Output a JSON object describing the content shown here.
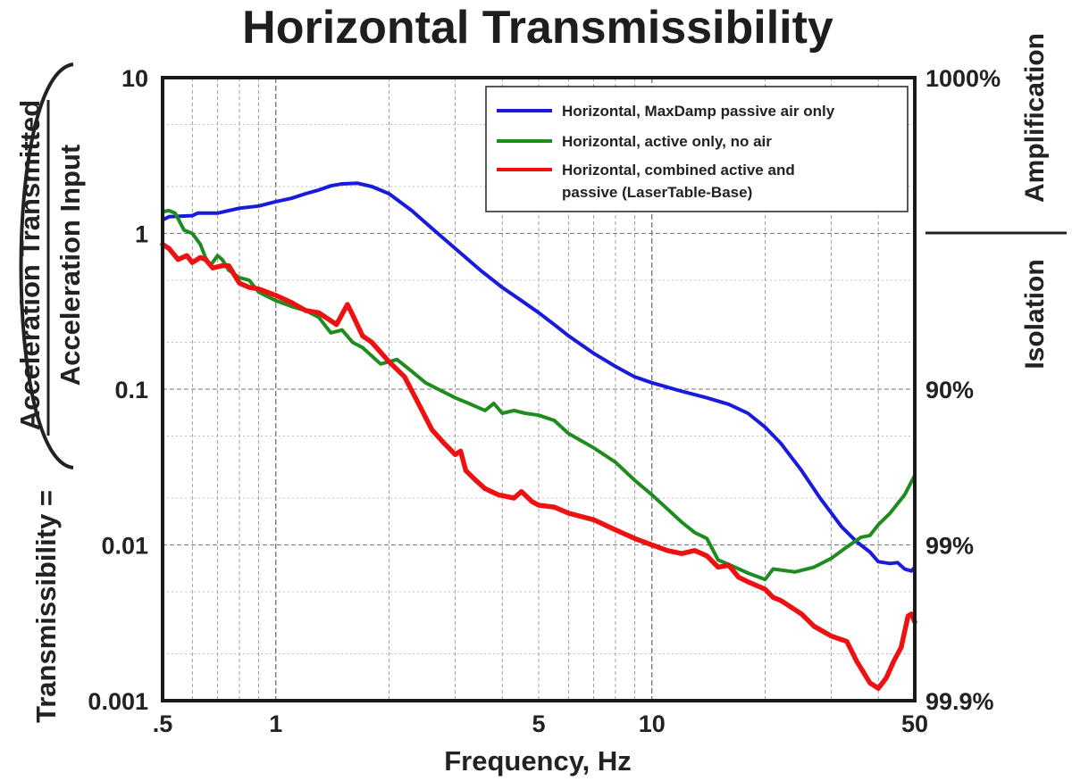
{
  "chart_data": {
    "type": "line",
    "title": "Horizontal Transmissibility",
    "xlabel": "Frequency, Hz",
    "ylabel_prefix": "Transmissibility =",
    "ylabel_numerator": "Acceleration Transmitted",
    "ylabel_denominator": "Acceleration Input",
    "x_scale": "log",
    "y_scale": "log",
    "xlim": [
      0.5,
      50
    ],
    "ylim": [
      0.001,
      10
    ],
    "x_ticks": [
      {
        "value": 0.5,
        "label": ".5"
      },
      {
        "value": 1,
        "label": "1"
      },
      {
        "value": 5,
        "label": "5"
      },
      {
        "value": 10,
        "label": "10"
      },
      {
        "value": 50,
        "label": "50"
      }
    ],
    "y_ticks": [
      {
        "value": 10,
        "label": "10"
      },
      {
        "value": 1,
        "label": "1"
      },
      {
        "value": 0.1,
        "label": "0.1"
      },
      {
        "value": 0.01,
        "label": "0.01"
      },
      {
        "value": 0.001,
        "label": "0.001"
      }
    ],
    "right_ticks": [
      {
        "value": 10,
        "label": "1000%"
      },
      {
        "value": 0.1,
        "label": "90%"
      },
      {
        "value": 0.01,
        "label": "99%"
      },
      {
        "value": 0.001,
        "label": "99.9%"
      }
    ],
    "right_labels": {
      "upper": "Amplification",
      "lower": "Isolation",
      "divider_at": 1
    },
    "grid": true,
    "legend_position": "top-right",
    "series": [
      {
        "name": "Horizontal, MaxDamp passive air only",
        "color": "#1a1adc",
        "points": [
          [
            0.5,
            1.22
          ],
          [
            0.52,
            1.28
          ],
          [
            0.6,
            1.3
          ],
          [
            0.62,
            1.35
          ],
          [
            0.7,
            1.35
          ],
          [
            0.8,
            1.45
          ],
          [
            0.9,
            1.5
          ],
          [
            1.0,
            1.6
          ],
          [
            1.1,
            1.68
          ],
          [
            1.2,
            1.8
          ],
          [
            1.3,
            1.9
          ],
          [
            1.4,
            2.02
          ],
          [
            1.5,
            2.08
          ],
          [
            1.65,
            2.1
          ],
          [
            1.8,
            2.0
          ],
          [
            2.0,
            1.8
          ],
          [
            2.3,
            1.4
          ],
          [
            2.6,
            1.08
          ],
          [
            3.0,
            0.8
          ],
          [
            3.5,
            0.58
          ],
          [
            4.0,
            0.45
          ],
          [
            4.5,
            0.37
          ],
          [
            5.0,
            0.31
          ],
          [
            5.5,
            0.26
          ],
          [
            6.0,
            0.22
          ],
          [
            7.0,
            0.17
          ],
          [
            8.0,
            0.14
          ],
          [
            9.0,
            0.12
          ],
          [
            10.0,
            0.11
          ],
          [
            11.0,
            0.103
          ],
          [
            12.0,
            0.097
          ],
          [
            14.0,
            0.088
          ],
          [
            16.0,
            0.08
          ],
          [
            18.0,
            0.07
          ],
          [
            20.0,
            0.057
          ],
          [
            22.0,
            0.045
          ],
          [
            25.0,
            0.03
          ],
          [
            28.0,
            0.02
          ],
          [
            32.0,
            0.013
          ],
          [
            35.0,
            0.0105
          ],
          [
            38.0,
            0.009
          ],
          [
            40.0,
            0.0078
          ],
          [
            43.0,
            0.0076
          ],
          [
            45.0,
            0.0077
          ],
          [
            47.0,
            0.007
          ],
          [
            49.0,
            0.0068
          ],
          [
            50.0,
            0.0072
          ]
        ]
      },
      {
        "name": "Horizontal, active only, no air",
        "color": "#1e8c1e",
        "points": [
          [
            0.5,
            1.38
          ],
          [
            0.52,
            1.4
          ],
          [
            0.54,
            1.35
          ],
          [
            0.57,
            1.05
          ],
          [
            0.6,
            1.0
          ],
          [
            0.63,
            0.85
          ],
          [
            0.65,
            0.7
          ],
          [
            0.67,
            0.62
          ],
          [
            0.7,
            0.72
          ],
          [
            0.72,
            0.68
          ],
          [
            0.75,
            0.58
          ],
          [
            0.8,
            0.52
          ],
          [
            0.85,
            0.5
          ],
          [
            0.9,
            0.42
          ],
          [
            1.0,
            0.37
          ],
          [
            1.1,
            0.34
          ],
          [
            1.2,
            0.32
          ],
          [
            1.3,
            0.29
          ],
          [
            1.4,
            0.23
          ],
          [
            1.5,
            0.24
          ],
          [
            1.6,
            0.2
          ],
          [
            1.7,
            0.185
          ],
          [
            1.9,
            0.145
          ],
          [
            2.1,
            0.155
          ],
          [
            2.3,
            0.13
          ],
          [
            2.5,
            0.11
          ],
          [
            2.7,
            0.1
          ],
          [
            3.0,
            0.088
          ],
          [
            3.3,
            0.08
          ],
          [
            3.6,
            0.073
          ],
          [
            3.8,
            0.081
          ],
          [
            4.0,
            0.07
          ],
          [
            4.3,
            0.073
          ],
          [
            4.6,
            0.07
          ],
          [
            5.0,
            0.068
          ],
          [
            5.5,
            0.063
          ],
          [
            6.0,
            0.052
          ],
          [
            7.0,
            0.042
          ],
          [
            8.0,
            0.034
          ],
          [
            9.0,
            0.026
          ],
          [
            10.0,
            0.021
          ],
          [
            11.0,
            0.017
          ],
          [
            12.0,
            0.014
          ],
          [
            13.0,
            0.012
          ],
          [
            14.0,
            0.011
          ],
          [
            15.0,
            0.008
          ],
          [
            16.0,
            0.0075
          ],
          [
            18.0,
            0.0066
          ],
          [
            20.0,
            0.006
          ],
          [
            21.0,
            0.007
          ],
          [
            22.0,
            0.0069
          ],
          [
            24.0,
            0.0067
          ],
          [
            27.0,
            0.0072
          ],
          [
            30.0,
            0.0082
          ],
          [
            33.0,
            0.0097
          ],
          [
            36.0,
            0.0112
          ],
          [
            38.0,
            0.0115
          ],
          [
            40.0,
            0.0135
          ],
          [
            43.0,
            0.016
          ],
          [
            47.0,
            0.021
          ],
          [
            50.0,
            0.028
          ]
        ]
      },
      {
        "name": "Horizontal, combined active and passive (LaserTable-Base)",
        "color": "#ee1111",
        "points": [
          [
            0.5,
            0.85
          ],
          [
            0.52,
            0.8
          ],
          [
            0.55,
            0.68
          ],
          [
            0.58,
            0.72
          ],
          [
            0.6,
            0.65
          ],
          [
            0.63,
            0.7
          ],
          [
            0.65,
            0.68
          ],
          [
            0.68,
            0.6
          ],
          [
            0.72,
            0.62
          ],
          [
            0.75,
            0.62
          ],
          [
            0.8,
            0.48
          ],
          [
            0.85,
            0.45
          ],
          [
            0.9,
            0.44
          ],
          [
            1.0,
            0.4
          ],
          [
            1.1,
            0.36
          ],
          [
            1.2,
            0.32
          ],
          [
            1.3,
            0.31
          ],
          [
            1.45,
            0.26
          ],
          [
            1.55,
            0.35
          ],
          [
            1.6,
            0.3
          ],
          [
            1.7,
            0.22
          ],
          [
            1.8,
            0.2
          ],
          [
            2.0,
            0.15
          ],
          [
            2.2,
            0.12
          ],
          [
            2.4,
            0.08
          ],
          [
            2.6,
            0.055
          ],
          [
            2.8,
            0.045
          ],
          [
            3.0,
            0.038
          ],
          [
            3.1,
            0.04
          ],
          [
            3.2,
            0.03
          ],
          [
            3.4,
            0.026
          ],
          [
            3.6,
            0.023
          ],
          [
            3.9,
            0.021
          ],
          [
            4.3,
            0.02
          ],
          [
            4.5,
            0.022
          ],
          [
            4.8,
            0.019
          ],
          [
            5.0,
            0.018
          ],
          [
            5.5,
            0.0175
          ],
          [
            6.0,
            0.016
          ],
          [
            7.0,
            0.0145
          ],
          [
            8.0,
            0.0125
          ],
          [
            9.0,
            0.011
          ],
          [
            10.0,
            0.01
          ],
          [
            11.0,
            0.0092
          ],
          [
            12.0,
            0.0088
          ],
          [
            13.0,
            0.0092
          ],
          [
            14.0,
            0.0085
          ],
          [
            15.0,
            0.0072
          ],
          [
            16.0,
            0.0074
          ],
          [
            17.0,
            0.0062
          ],
          [
            18.0,
            0.0058
          ],
          [
            20.0,
            0.0052
          ],
          [
            21.0,
            0.0046
          ],
          [
            22.0,
            0.0044
          ],
          [
            25.0,
            0.0036
          ],
          [
            27.0,
            0.003
          ],
          [
            30.0,
            0.0026
          ],
          [
            33.0,
            0.0024
          ],
          [
            35.0,
            0.0018
          ],
          [
            38.0,
            0.0013
          ],
          [
            40.0,
            0.0012
          ],
          [
            42.0,
            0.0014
          ],
          [
            44.0,
            0.0018
          ],
          [
            46.0,
            0.0022
          ],
          [
            48.0,
            0.0035
          ],
          [
            49.0,
            0.0036
          ],
          [
            50.0,
            0.0032
          ]
        ]
      }
    ],
    "legend_lines": [
      [
        "Horizontal, MaxDamp passive air only"
      ],
      [
        "Horizontal, active only, no air"
      ],
      [
        "Horizontal, combined active and",
        "passive (LaserTable-Base)"
      ]
    ]
  }
}
